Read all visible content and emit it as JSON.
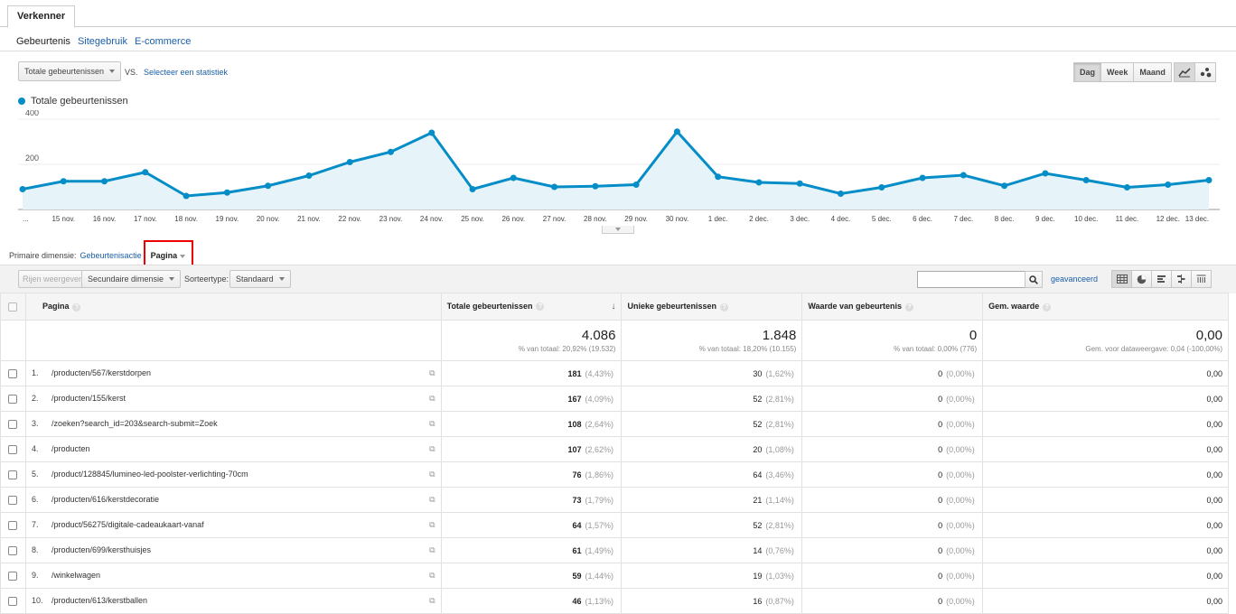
{
  "tabs": {
    "explorer": "Verkenner"
  },
  "subnav": {
    "items": [
      "Gebeurtenis",
      "Sitegebruik",
      "E-commerce"
    ]
  },
  "chart_controls": {
    "metric": "Totale gebeurtenissen",
    "vs": "VS.",
    "compare": "Selecteer een statistiek",
    "periods": [
      "Dag",
      "Week",
      "Maand"
    ],
    "selected_period": "Dag"
  },
  "chart_data": {
    "type": "line",
    "series": [
      {
        "name": "Totale gebeurtenissen",
        "values": [
          90,
          125,
          125,
          165,
          60,
          75,
          105,
          150,
          210,
          255,
          340,
          90,
          140,
          100,
          103,
          110,
          345,
          145,
          120,
          115,
          70,
          98,
          140,
          152,
          105,
          160,
          130,
          98,
          110,
          130
        ]
      }
    ],
    "x": [
      "",
      "15 nov.",
      "16 nov.",
      "17 nov.",
      "18 nov.",
      "19 nov.",
      "20 nov.",
      "21 nov.",
      "22 nov.",
      "23 nov.",
      "24 nov.",
      "25 nov.",
      "26 nov.",
      "27 nov.",
      "28 nov.",
      "29 nov.",
      "30 nov.",
      "1 dec.",
      "2 dec.",
      "3 dec.",
      "4 dec.",
      "5 dec.",
      "6 dec.",
      "7 dec.",
      "8 dec.",
      "9 dec.",
      "10 dec.",
      "11 dec.",
      "12 dec.",
      "13 dec."
    ],
    "x_first_label": "...",
    "ylim": [
      0,
      400
    ],
    "yticks": [
      "200",
      "400"
    ],
    "color": "#058dc7",
    "fill": "#e6f4fa",
    "grid": true
  },
  "primary_dimension": {
    "label": "Primaire dimensie:",
    "option_event_action": "Gebeurtenisactie",
    "option_page": "Pagina"
  },
  "toolbar": {
    "show_rows": "Rijen weergeven",
    "secondary_dimension": "Secundaire dimensie",
    "sort_type_label": "Sorteertype:",
    "sort_type_value": "Standaard",
    "search_placeholder": "",
    "advanced": "geavanceerd"
  },
  "table": {
    "headers": {
      "page": "Pagina",
      "total_events": "Totale gebeurtenissen",
      "unique_events": "Unieke gebeurtenissen",
      "event_value": "Waarde van gebeurtenis",
      "avg_value": "Gem. waarde"
    },
    "totals": {
      "total_events": "4.086",
      "total_events_sub": "% van totaal: 20,92% (19.532)",
      "unique_events": "1.848",
      "unique_events_sub": "% van totaal: 18,20% (10.155)",
      "event_value": "0",
      "event_value_sub": "% van totaal: 0,00% (776)",
      "avg_value": "0,00",
      "avg_value_sub": "Gem. voor dataweergave: 0,04 (-100,00%)"
    },
    "rows": [
      {
        "idx": "1.",
        "page": "/producten/567/kerstdorpen",
        "total": "181",
        "total_pct": "(4,43%)",
        "unique": "30",
        "unique_pct": "(1,62%)",
        "value": "0",
        "value_pct": "(0,00%)",
        "avg": "0,00"
      },
      {
        "idx": "2.",
        "page": "/producten/155/kerst",
        "total": "167",
        "total_pct": "(4,09%)",
        "unique": "52",
        "unique_pct": "(2,81%)",
        "value": "0",
        "value_pct": "(0,00%)",
        "avg": "0,00"
      },
      {
        "idx": "3.",
        "page": "/zoeken?search_id=203&search-submit=Zoek",
        "total": "108",
        "total_pct": "(2,64%)",
        "unique": "52",
        "unique_pct": "(2,81%)",
        "value": "0",
        "value_pct": "(0,00%)",
        "avg": "0,00"
      },
      {
        "idx": "4.",
        "page": "/producten",
        "total": "107",
        "total_pct": "(2,62%)",
        "unique": "20",
        "unique_pct": "(1,08%)",
        "value": "0",
        "value_pct": "(0,00%)",
        "avg": "0,00"
      },
      {
        "idx": "5.",
        "page": "/product/128845/lumineo-led-poolster-verlichting-70cm",
        "total": "76",
        "total_pct": "(1,86%)",
        "unique": "64",
        "unique_pct": "(3,46%)",
        "value": "0",
        "value_pct": "(0,00%)",
        "avg": "0,00"
      },
      {
        "idx": "6.",
        "page": "/producten/616/kerstdecoratie",
        "total": "73",
        "total_pct": "(1,79%)",
        "unique": "21",
        "unique_pct": "(1,14%)",
        "value": "0",
        "value_pct": "(0,00%)",
        "avg": "0,00"
      },
      {
        "idx": "7.",
        "page": "/product/56275/digitale-cadeaukaart-vanaf",
        "total": "64",
        "total_pct": "(1,57%)",
        "unique": "52",
        "unique_pct": "(2,81%)",
        "value": "0",
        "value_pct": "(0,00%)",
        "avg": "0,00"
      },
      {
        "idx": "8.",
        "page": "/producten/699/kersthuisjes",
        "total": "61",
        "total_pct": "(1,49%)",
        "unique": "14",
        "unique_pct": "(0,76%)",
        "value": "0",
        "value_pct": "(0,00%)",
        "avg": "0,00"
      },
      {
        "idx": "9.",
        "page": "/winkelwagen",
        "total": "59",
        "total_pct": "(1,44%)",
        "unique": "19",
        "unique_pct": "(1,03%)",
        "value": "0",
        "value_pct": "(0,00%)",
        "avg": "0,00"
      },
      {
        "idx": "10.",
        "page": "/producten/613/kerstballen",
        "total": "46",
        "total_pct": "(1,13%)",
        "unique": "16",
        "unique_pct": "(0,87%)",
        "value": "0",
        "value_pct": "(0,00%)",
        "avg": "0,00"
      }
    ]
  }
}
